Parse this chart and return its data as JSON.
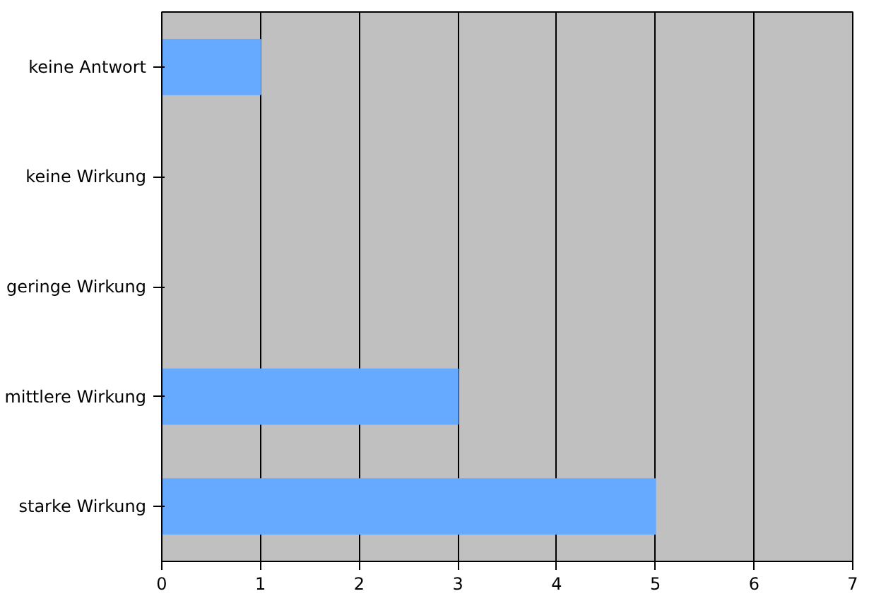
{
  "chart_data": {
    "type": "bar",
    "orientation": "horizontal",
    "categories": [
      "keine Antwort",
      "keine Wirkung",
      "geringe Wirkung",
      "mittlere Wirkung",
      "starke Wirkung"
    ],
    "values": [
      1,
      0,
      0,
      3,
      5
    ],
    "color": "#66aaff",
    "xlim": [
      0,
      7
    ],
    "xticks": [
      0,
      1,
      2,
      3,
      4,
      5,
      6,
      7
    ],
    "grid": "x"
  }
}
